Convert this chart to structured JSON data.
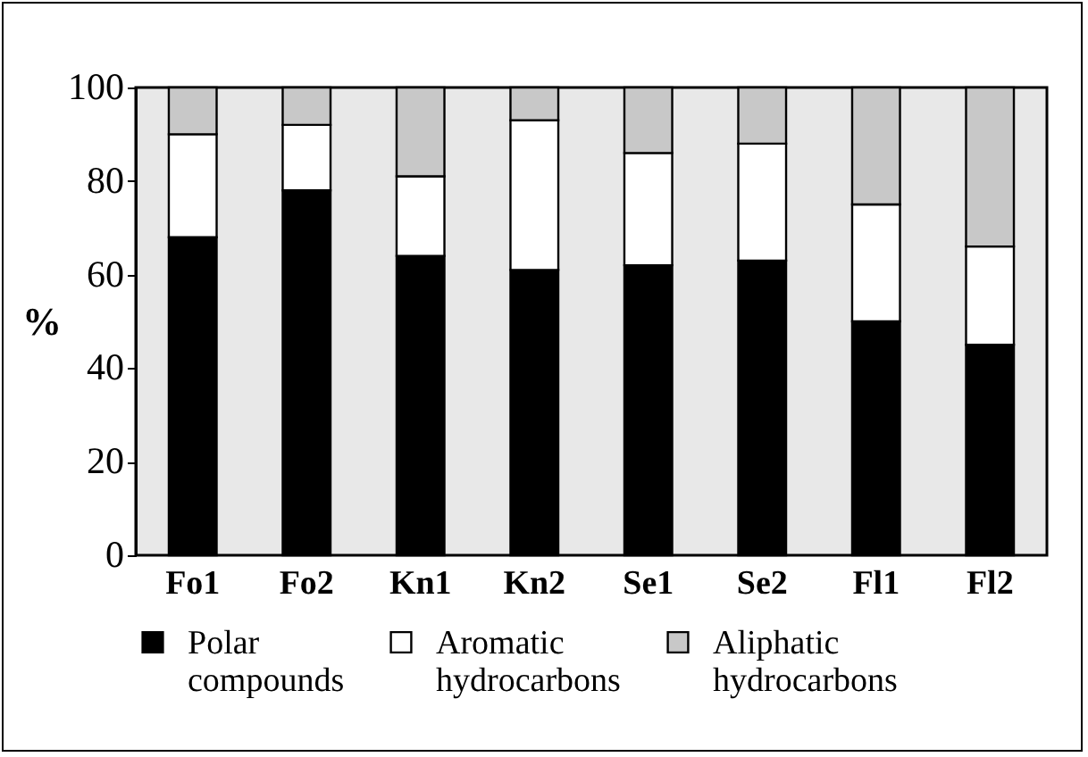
{
  "chart_data": {
    "type": "bar",
    "stacked": true,
    "ylabel": "%",
    "categories": [
      "Fo1",
      "Fo2",
      "Kn1",
      "Kn2",
      "Se1",
      "Se2",
      "Fl1",
      "Fl2"
    ],
    "series": [
      {
        "name": "Polar compounds",
        "color": "#000000",
        "values": [
          68,
          78,
          64,
          61,
          62,
          63,
          50,
          45
        ]
      },
      {
        "name": "Aromatic hydrocarbons",
        "color": "#ffffff",
        "values": [
          22,
          14,
          17,
          32,
          24,
          25,
          25,
          21
        ]
      },
      {
        "name": "Aliphatic hydrocarbons",
        "color": "#c8c8c8",
        "values": [
          10,
          8,
          19,
          7,
          14,
          12,
          25,
          34
        ]
      }
    ],
    "ylim": [
      0,
      100
    ],
    "yticks": [
      0,
      20,
      40,
      60,
      80,
      100
    ],
    "grid": false,
    "legend": "bottom"
  }
}
